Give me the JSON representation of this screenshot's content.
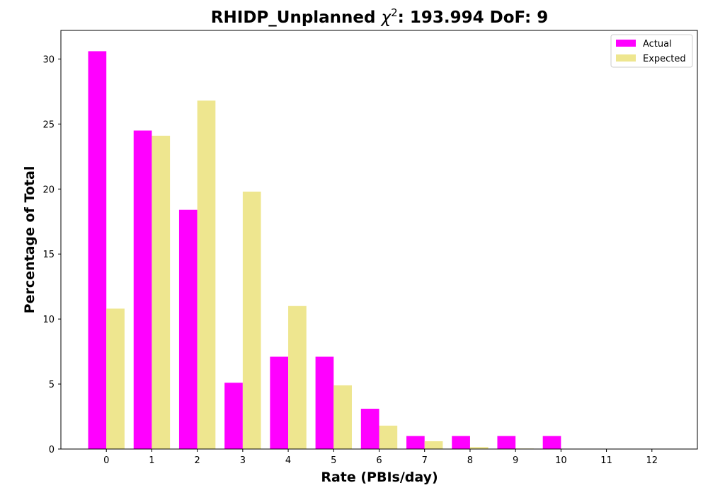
{
  "chart_data": {
    "type": "bar",
    "title": {
      "prefix": "RHIDP_Unplanned ",
      "chi": "χ",
      "superscript": "2",
      "suffix": ": 193.994 DoF: 9"
    },
    "xlabel": "Rate (PBIs/day)",
    "ylabel": "Percentage of Total",
    "categories": [
      "0",
      "1",
      "2",
      "3",
      "4",
      "5",
      "6",
      "7",
      "8",
      "9",
      "10",
      "11",
      "12"
    ],
    "yticks": [
      "0",
      "5",
      "10",
      "15",
      "20",
      "25",
      "30"
    ],
    "ylim": [
      0,
      32.2
    ],
    "xlim": [
      -1.0,
      13.0
    ],
    "grid": false,
    "legend_position": "top-right",
    "series": [
      {
        "name": "Actual",
        "color": "#ff00ff",
        "values": [
          30.6,
          24.5,
          18.4,
          5.1,
          7.1,
          7.1,
          3.1,
          1.0,
          1.0,
          1.0,
          1.0,
          0,
          0
        ]
      },
      {
        "name": "Expected",
        "color": "#eee68f",
        "values": [
          10.8,
          24.1,
          26.8,
          19.8,
          11.0,
          4.9,
          1.8,
          0.6,
          0.15,
          0.04,
          0.01,
          0,
          0
        ]
      }
    ]
  }
}
